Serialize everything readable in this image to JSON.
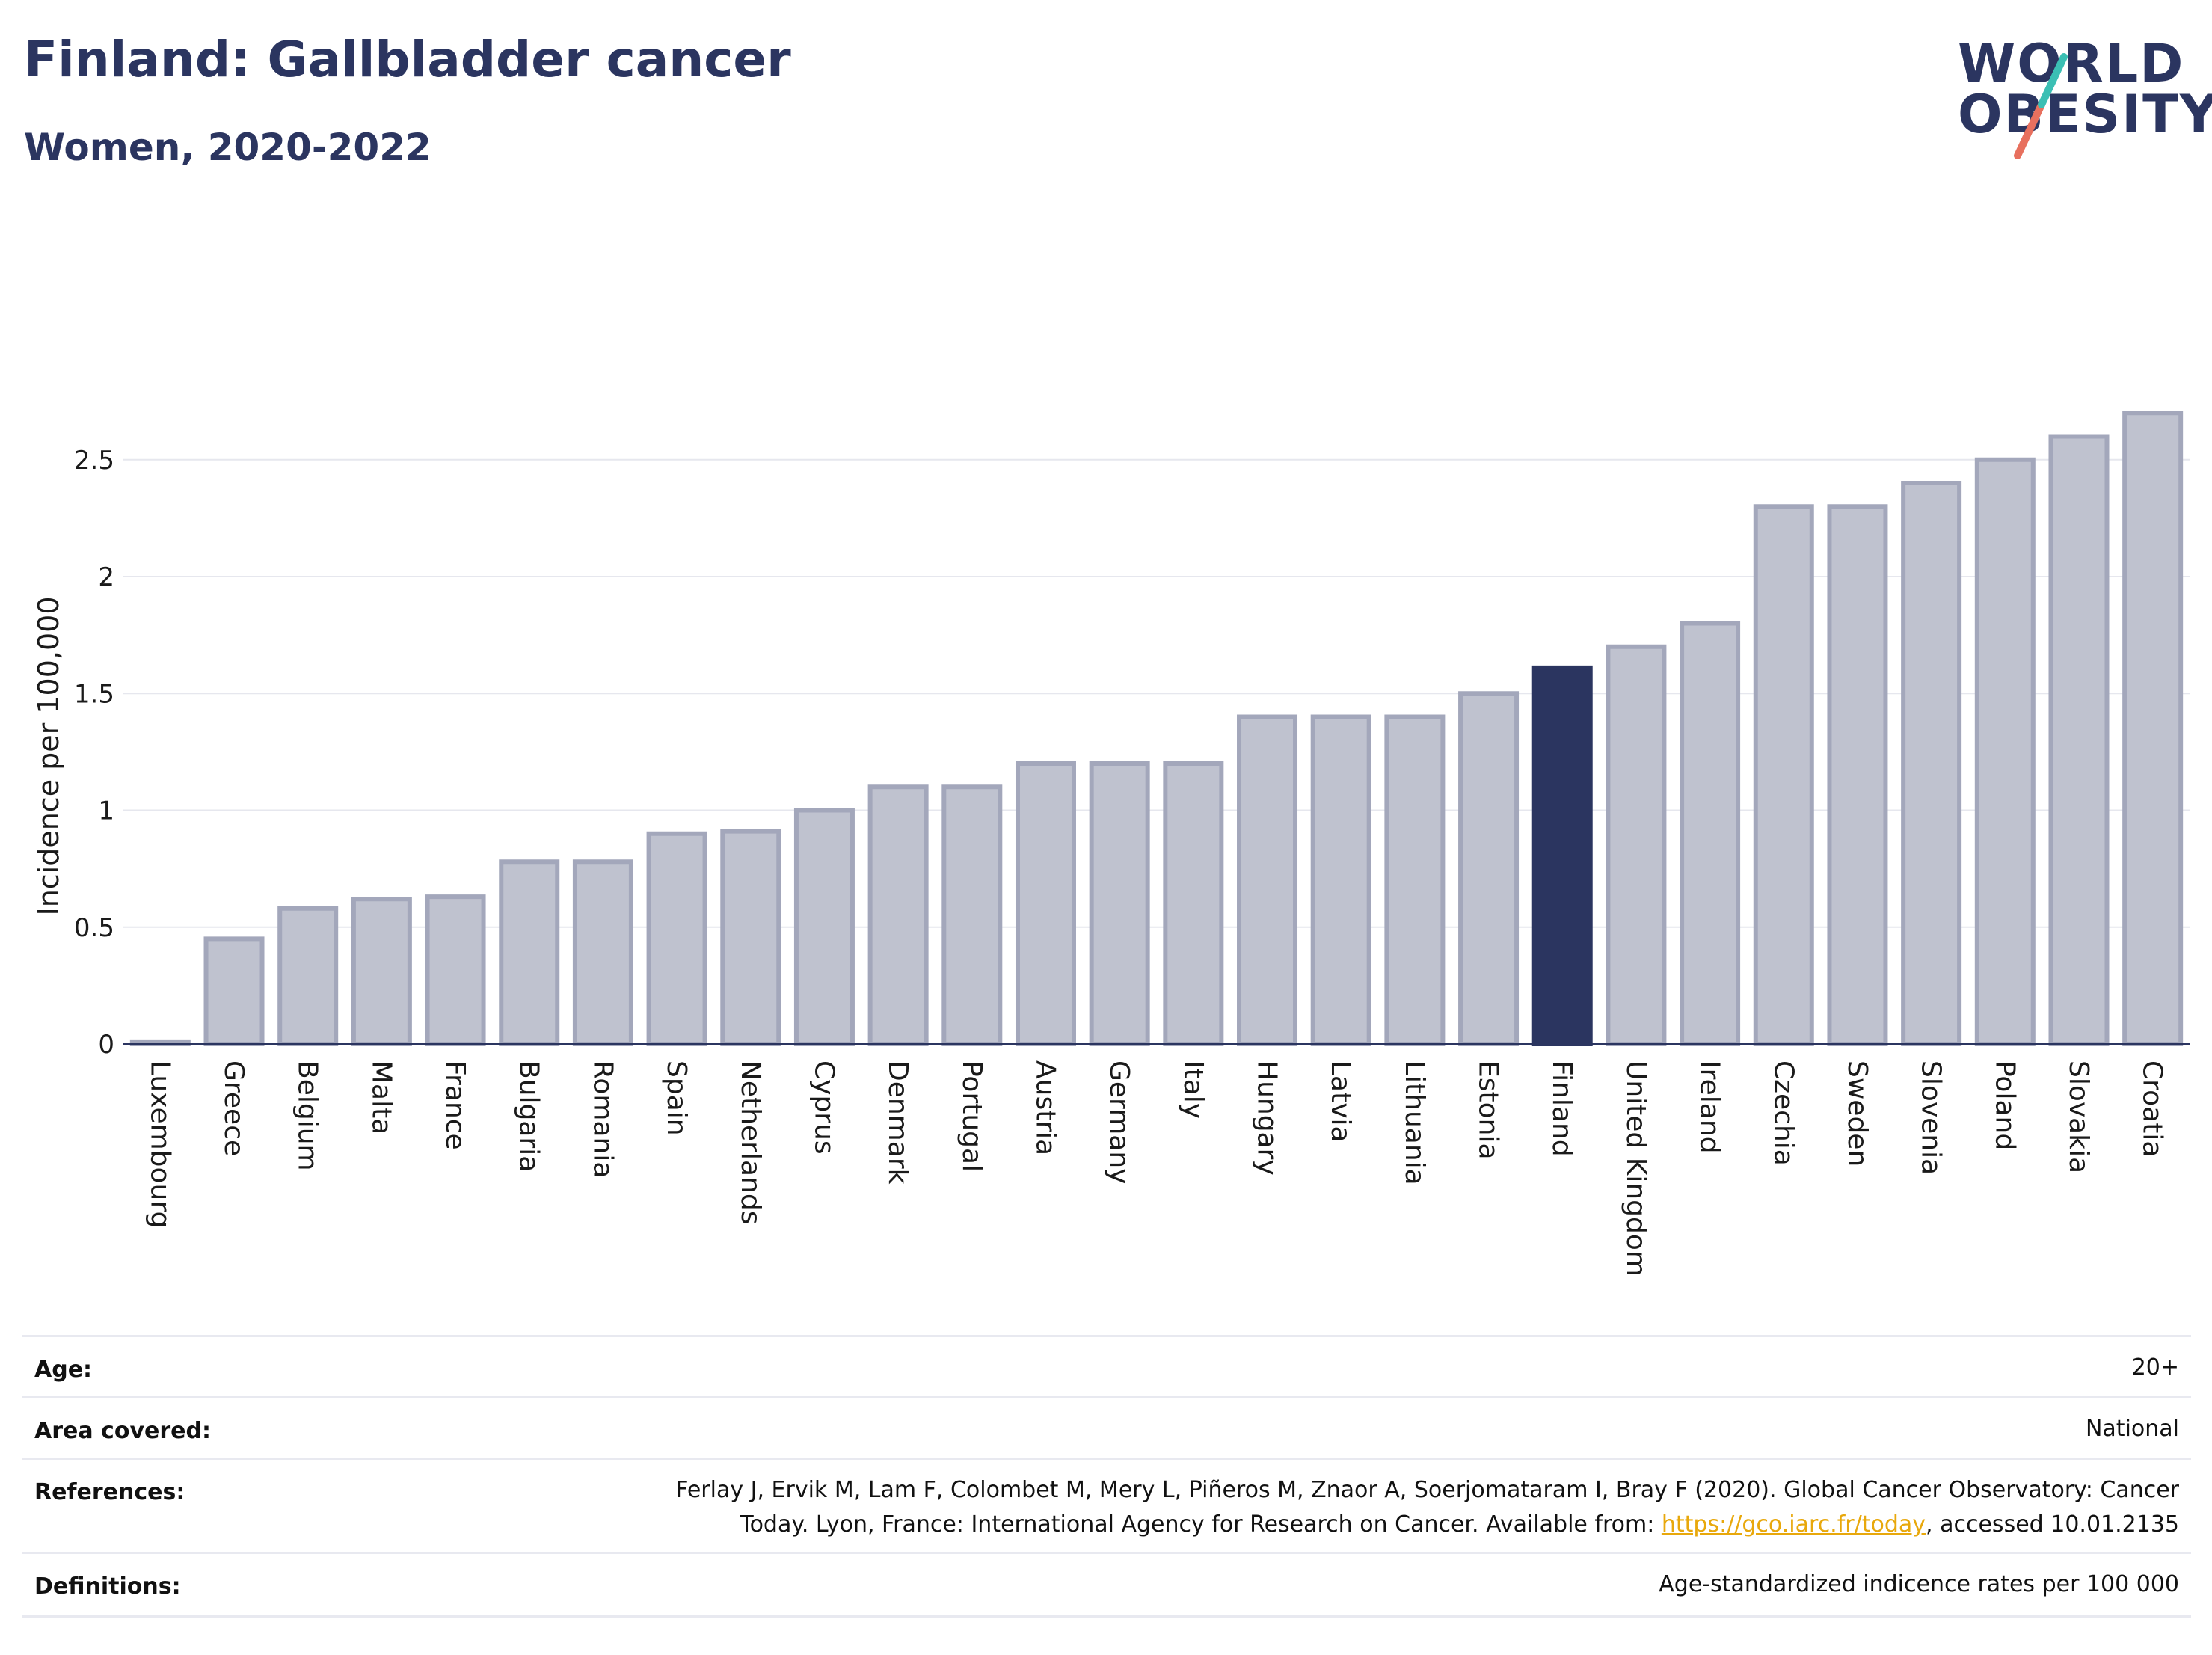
{
  "title": "Finland: Gallbladder cancer",
  "subtitle": "Women, 2020-2022",
  "logo": {
    "line1": "WORLD",
    "line2": "OBESITY"
  },
  "colors": {
    "highlight": "#2b3560",
    "bar_fill": "#bfc2cf",
    "bar_stroke": "#a3a7bb",
    "grid": "#e6e7ee",
    "link": "#e8a80c"
  },
  "chart_data": {
    "type": "bar",
    "ylabel": "Incidence per 100,000",
    "xlabel": "",
    "ylim": [
      0,
      2.72
    ],
    "yticks": [
      0,
      0.5,
      1,
      1.5,
      2,
      2.5
    ],
    "ytick_labels": [
      "0",
      "0.5",
      "1",
      "1.5",
      "2",
      "2.5"
    ],
    "grid": true,
    "highlight": "Finland",
    "categories": [
      "Luxembourg",
      "Greece",
      "Belgium",
      "Malta",
      "France",
      "Bulgaria",
      "Romania",
      "Spain",
      "Netherlands",
      "Cyprus",
      "Denmark",
      "Portugal",
      "Austria",
      "Germany",
      "Italy",
      "Hungary",
      "Latvia",
      "Lithuania",
      "Estonia",
      "Finland",
      "United Kingdom",
      "Ireland",
      "Czechia",
      "Sweden",
      "Slovenia",
      "Poland",
      "Slovakia",
      "Croatia"
    ],
    "values": [
      0.01,
      0.45,
      0.58,
      0.62,
      0.63,
      0.78,
      0.78,
      0.9,
      0.91,
      1.0,
      1.1,
      1.1,
      1.2,
      1.2,
      1.2,
      1.4,
      1.4,
      1.4,
      1.5,
      1.61,
      1.7,
      1.8,
      2.3,
      2.3,
      2.4,
      2.5,
      2.6,
      2.7
    ]
  },
  "info": {
    "age_label": "Age:",
    "age_value": "20+",
    "area_label": "Area covered:",
    "area_value": "National",
    "references_label": "References:",
    "references_line1": "Ferlay J, Ervik M, Lam F, Colombet M, Mery L, Piñeros M, Znaor A, Soerjomataram I, Bray F (2020). Global Cancer Observatory: Cancer",
    "references_line2_pre": "Today. Lyon, France: International Agency for Research on Cancer. Available from: ",
    "references_link": "https://gco.iarc.fr/today",
    "references_line2_post": ", accessed 10.01.2135",
    "definitions_label": "Definitions:",
    "definitions_value": "Age-standardized indicence rates per 100 000"
  }
}
